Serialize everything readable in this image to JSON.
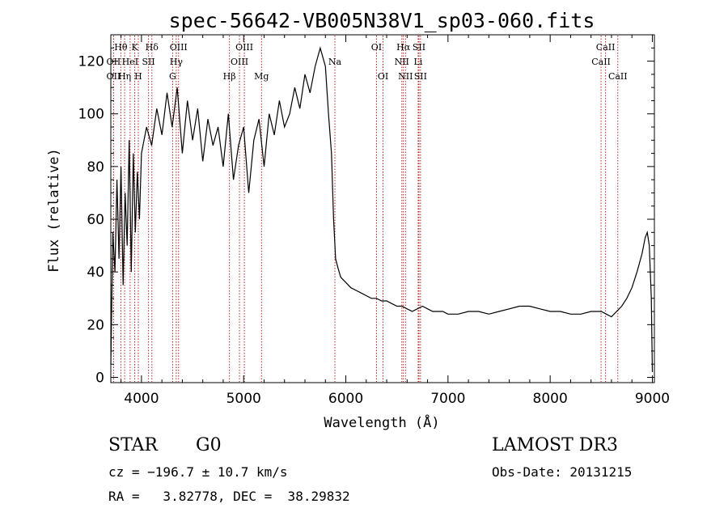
{
  "chart_data": {
    "type": "line",
    "title": "spec-56642-VB005N38V1_sp03-060.fits",
    "xlabel": "Wavelength (Å)",
    "ylabel": "Flux (relative)",
    "xlim": [
      3700,
      9020
    ],
    "ylim": [
      -2,
      130
    ],
    "xticks": [
      4000,
      5000,
      6000,
      7000,
      8000,
      9000
    ],
    "yticks": [
      0,
      20,
      40,
      60,
      80,
      100,
      120
    ],
    "grid": false,
    "series": [
      {
        "name": "flux",
        "color": "#000000",
        "x": [
          3700,
          3720,
          3740,
          3760,
          3780,
          3800,
          3820,
          3840,
          3860,
          3880,
          3900,
          3920,
          3940,
          3960,
          3980,
          4000,
          4050,
          4100,
          4150,
          4200,
          4250,
          4300,
          4350,
          4400,
          4450,
          4500,
          4550,
          4600,
          4650,
          4700,
          4750,
          4800,
          4850,
          4900,
          4950,
          5000,
          5050,
          5100,
          5150,
          5200,
          5250,
          5300,
          5350,
          5400,
          5450,
          5500,
          5550,
          5600,
          5650,
          5700,
          5750,
          5800,
          5830,
          5860,
          5880,
          5900,
          5920,
          5950,
          6000,
          6050,
          6100,
          6150,
          6200,
          6250,
          6300,
          6350,
          6400,
          6450,
          6500,
          6550,
          6600,
          6650,
          6700,
          6750,
          6800,
          6850,
          6900,
          6950,
          7000,
          7100,
          7200,
          7300,
          7400,
          7500,
          7600,
          7700,
          7800,
          7900,
          8000,
          8100,
          8200,
          8300,
          8400,
          8500,
          8550,
          8600,
          8650,
          8700,
          8750,
          8800,
          8850,
          8900,
          8930,
          8950,
          8970,
          8990,
          9000
        ],
        "y": [
          5,
          55,
          40,
          75,
          45,
          80,
          35,
          70,
          50,
          90,
          40,
          85,
          55,
          78,
          60,
          85,
          95,
          88,
          102,
          92,
          108,
          95,
          110,
          85,
          105,
          90,
          102,
          82,
          98,
          88,
          95,
          80,
          100,
          75,
          88,
          95,
          70,
          90,
          98,
          80,
          100,
          92,
          105,
          95,
          100,
          110,
          102,
          115,
          108,
          118,
          125,
          118,
          100,
          85,
          60,
          45,
          42,
          38,
          36,
          34,
          33,
          32,
          31,
          30,
          30,
          29,
          29,
          28,
          27,
          27,
          26,
          25,
          26,
          27,
          26,
          25,
          25,
          25,
          24,
          24,
          25,
          25,
          24,
          25,
          26,
          27,
          27,
          26,
          25,
          25,
          24,
          24,
          25,
          25,
          24,
          23,
          25,
          27,
          30,
          34,
          40,
          47,
          53,
          55,
          50,
          30,
          2
        ]
      }
    ],
    "line_color": "#b22222",
    "lines": [
      {
        "label": "Hθ",
        "x": 3798,
        "row": 0
      },
      {
        "label": "K",
        "x": 3934,
        "row": 0
      },
      {
        "label": "Hδ",
        "x": 4102,
        "row": 0
      },
      {
        "label": "OIII",
        "x": 4363,
        "row": 0
      },
      {
        "label": "OIII",
        "x": 5007,
        "row": 0
      },
      {
        "label": "OI",
        "x": 6300,
        "row": 0
      },
      {
        "label": "Hα",
        "x": 6563,
        "row": 0
      },
      {
        "label": "SII",
        "x": 6716,
        "row": 0
      },
      {
        "label": "CaII",
        "x": 8542,
        "row": 0
      },
      {
        "label": "OII",
        "x": 3727,
        "row": 1
      },
      {
        "label": "HeI",
        "x": 3889,
        "row": 1
      },
      {
        "label": "SII",
        "x": 4069,
        "row": 1
      },
      {
        "label": "Hγ",
        "x": 4340,
        "row": 1
      },
      {
        "label": "OIII",
        "x": 4959,
        "row": 1
      },
      {
        "label": "Na",
        "x": 5893,
        "row": 1
      },
      {
        "label": "NII",
        "x": 6548,
        "row": 1
      },
      {
        "label": "Li",
        "x": 6708,
        "row": 1
      },
      {
        "label": "CaII",
        "x": 8498,
        "row": 1
      },
      {
        "label": "OII",
        "x": 3727,
        "row": 2
      },
      {
        "label": "Hη",
        "x": 3835,
        "row": 2
      },
      {
        "label": "H",
        "x": 3969,
        "row": 2
      },
      {
        "label": "G",
        "x": 4305,
        "row": 2
      },
      {
        "label": "Hβ",
        "x": 4861,
        "row": 2
      },
      {
        "label": "Mg",
        "x": 5175,
        "row": 2
      },
      {
        "label": "OI",
        "x": 6364,
        "row": 2
      },
      {
        "label": "NII",
        "x": 6584,
        "row": 2
      },
      {
        "label": "SII",
        "x": 6731,
        "row": 2
      },
      {
        "label": "CaII",
        "x": 8662,
        "row": 2
      }
    ]
  },
  "info": {
    "class": "STAR",
    "subclass": "G0",
    "survey": "LAMOST DR3",
    "cz": "cz = −196.7 ± 10.7 km/s",
    "obs_date": "Obs-Date: 20131215",
    "radec": "RA =   3.82778, DEC =  38.29832"
  }
}
